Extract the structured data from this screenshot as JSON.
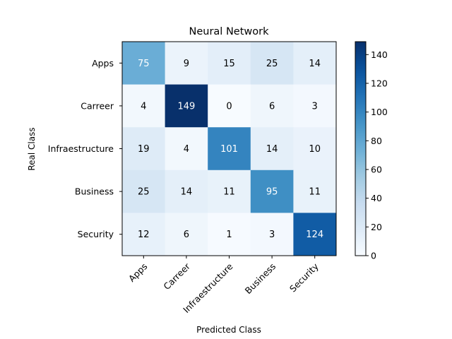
{
  "chart_data": {
    "type": "heatmap",
    "title": "Neural Network",
    "xlabel": "Predicted Class",
    "ylabel": "Real Class",
    "x_categories": [
      "Apps",
      "Carreer",
      "Infraestructure",
      "Business",
      "Security"
    ],
    "y_categories": [
      "Apps",
      "Carreer",
      "Infraestructure",
      "Business",
      "Security"
    ],
    "values": [
      [
        75,
        9,
        15,
        25,
        14
      ],
      [
        4,
        149,
        0,
        6,
        3
      ],
      [
        19,
        4,
        101,
        14,
        10
      ],
      [
        25,
        14,
        11,
        95,
        11
      ],
      [
        12,
        6,
        1,
        3,
        124
      ]
    ],
    "colormap": "Blues",
    "color_range": [
      0,
      149
    ],
    "colorbar_ticks": [
      "0",
      "20",
      "40",
      "60",
      "80",
      "100",
      "120",
      "140"
    ],
    "colorbar_tick_values": [
      0,
      20,
      40,
      60,
      80,
      100,
      120,
      140
    ],
    "text_color_dark": "#000000",
    "text_color_light": "#ffffff"
  }
}
